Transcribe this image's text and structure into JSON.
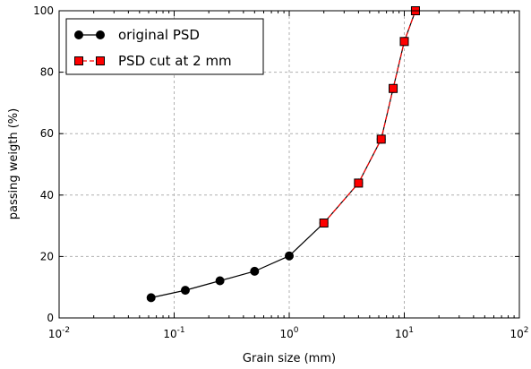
{
  "chart_data": {
    "type": "line",
    "xscale": "log",
    "xlim": [
      0.01,
      100
    ],
    "ylim": [
      0,
      100
    ],
    "xlabel": "Grain size (mm)",
    "ylabel": "passing weigth (%)",
    "grid": true,
    "legend_position": "top-left",
    "x_ticks": [
      {
        "base": "10",
        "exp": "-2",
        "value": 0.01
      },
      {
        "base": "10",
        "exp": "-1",
        "value": 0.1
      },
      {
        "base": "10",
        "exp": "0",
        "value": 1
      },
      {
        "base": "10",
        "exp": "1",
        "value": 10
      },
      {
        "base": "10",
        "exp": "2",
        "value": 100
      }
    ],
    "y_ticks": [
      0,
      20,
      40,
      60,
      80,
      100
    ],
    "series": [
      {
        "name": "original PSD",
        "color": "#000000",
        "marker": "circle",
        "line": "solid",
        "x": [
          0.063,
          0.125,
          0.25,
          0.5,
          1,
          2,
          4,
          6.3,
          8,
          10,
          12.5
        ],
        "y": [
          6.6,
          9,
          12.1,
          15.2,
          20.2,
          30.9,
          43.9,
          58.2,
          74.7,
          90,
          100
        ]
      },
      {
        "name": "PSD cut at 2 mm",
        "color": "#ff0000",
        "marker": "square",
        "line": "dashed",
        "x": [
          2,
          4,
          6.3,
          8,
          10,
          12.5
        ],
        "y": [
          30.9,
          43.9,
          58.2,
          74.7,
          90,
          100
        ]
      }
    ]
  }
}
